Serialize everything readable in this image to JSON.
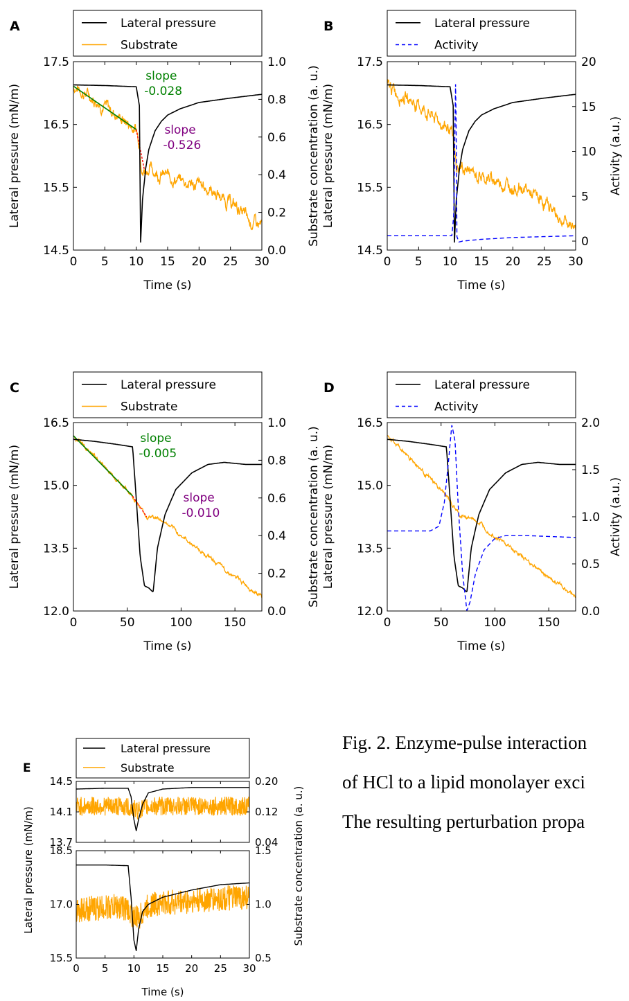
{
  "caption_lines": [
    "Fig. 2. Enzyme-pulse interaction",
    "of HCl to a lipid monolayer exci",
    "The resulting perturbation propa"
  ],
  "colors": {
    "pressure": "#000000",
    "substrate": "#ffa500",
    "activity": "#0000ff",
    "slope_fit": "#008000",
    "slope_label_1": "#008000",
    "slope_label_2": "#800080",
    "slope_fit_2": "#ff0000"
  },
  "chart_data": [
    {
      "panel": "A",
      "type": "line",
      "legend": [
        "Lateral pressure",
        "Substrate"
      ],
      "xlabel": "Time (s)",
      "ylabel_left": "Lateral pressure (mN/m)",
      "ylabel_right": "Substrate concentration (a. u.)",
      "xlim": [
        0,
        30
      ],
      "ylim_left": [
        14.5,
        17.5
      ],
      "ylim_right": [
        0.0,
        1.0
      ],
      "xticks": [
        "0",
        "5",
        "10",
        "15",
        "20",
        "25",
        "30"
      ],
      "yticks_left": [
        "14.5",
        "15.5",
        "16.5",
        "17.5"
      ],
      "yticks_right": [
        "0.0",
        "0.2",
        "0.4",
        "0.6",
        "0.8",
        "1.0"
      ],
      "series": [
        {
          "name": "Lateral pressure",
          "axis": "left",
          "x": [
            0,
            5,
            10,
            10.5,
            10.7,
            11,
            11.5,
            12,
            13,
            14,
            15,
            17,
            20,
            25,
            30
          ],
          "y": [
            17.13,
            17.12,
            17.1,
            16.8,
            14.62,
            15.3,
            15.8,
            16.1,
            16.4,
            16.55,
            16.65,
            16.75,
            16.85,
            16.92,
            16.98
          ]
        },
        {
          "name": "Substrate",
          "axis": "right",
          "x": [
            0,
            2,
            4,
            6,
            8,
            10,
            10.6,
            11,
            12,
            14,
            16,
            18,
            20,
            22,
            24,
            26,
            28,
            30
          ],
          "y": [
            0.87,
            0.83,
            0.79,
            0.74,
            0.69,
            0.64,
            0.56,
            0.42,
            0.44,
            0.4,
            0.38,
            0.36,
            0.34,
            0.32,
            0.27,
            0.23,
            0.15,
            0.13
          ]
        }
      ],
      "annotations": [
        {
          "text": "slope",
          "text2": "-0.028"
        },
        {
          "text": "slope",
          "text2": "-0.526"
        }
      ]
    },
    {
      "panel": "B",
      "type": "line",
      "legend": [
        "Lateral pressure",
        "Activity"
      ],
      "xlabel": "Time (s)",
      "ylabel_left": "Lateral pressure (mN/m)",
      "ylabel_right": "Activity (a.u.)",
      "xlim": [
        0,
        30
      ],
      "ylim_left": [
        14.5,
        17.5
      ],
      "ylim_right": [
        -1,
        20
      ],
      "xticks": [
        "0",
        "5",
        "10",
        "15",
        "20",
        "25",
        "30"
      ],
      "yticks_left": [
        "14.5",
        "15.5",
        "16.5",
        "17.5"
      ],
      "yticks_right": [
        "0",
        "5",
        "10",
        "15",
        "20"
      ],
      "series": [
        {
          "name": "Lateral pressure",
          "axis": "left",
          "x": [
            0,
            5,
            10,
            10.5,
            10.7,
            11,
            11.5,
            12,
            13,
            14,
            15,
            17,
            20,
            25,
            30
          ],
          "y": [
            17.13,
            17.12,
            17.1,
            16.8,
            14.62,
            15.3,
            15.8,
            16.1,
            16.4,
            16.55,
            16.65,
            16.75,
            16.85,
            16.92,
            16.98
          ]
        },
        {
          "name": "Activity",
          "axis": "right",
          "x": [
            0,
            10.3,
            10.6,
            10.9,
            11.1,
            11.4,
            12,
            15,
            20,
            25,
            30
          ],
          "y": [
            0.6,
            0.6,
            3,
            18.8,
            0.5,
            -0.1,
            0.0,
            0.2,
            0.4,
            0.5,
            0.6
          ]
        }
      ],
      "substrate_overlay": {
        "x": [
          0,
          2,
          4,
          6,
          8,
          10,
          10.6,
          11,
          12,
          14,
          16,
          18,
          20,
          22,
          24,
          26,
          28,
          30
        ],
        "y": [
          0.87,
          0.83,
          0.79,
          0.74,
          0.69,
          0.64,
          0.56,
          0.42,
          0.44,
          0.4,
          0.38,
          0.36,
          0.34,
          0.32,
          0.27,
          0.23,
          0.15,
          0.13
        ]
      }
    },
    {
      "panel": "C",
      "type": "line",
      "legend": [
        "Lateral pressure",
        "Substrate"
      ],
      "xlabel": "Time (s)",
      "ylabel_left": "Lateral pressure (mN/m)",
      "ylabel_right": "Substrate concentration (a. u.)",
      "xlim": [
        0,
        175
      ],
      "ylim_left": [
        12.0,
        16.5
      ],
      "ylim_right": [
        0.0,
        1.0
      ],
      "xticks": [
        "0",
        "50",
        "100",
        "150"
      ],
      "yticks_left": [
        "12.0",
        "13.5",
        "15.0",
        "16.5"
      ],
      "yticks_right": [
        "0.0",
        "0.2",
        "0.4",
        "0.6",
        "0.8",
        "1.0"
      ],
      "series": [
        {
          "name": "Lateral pressure",
          "axis": "left",
          "x": [
            0,
            20,
            40,
            55,
            58,
            62,
            66,
            70,
            74,
            78,
            85,
            95,
            110,
            125,
            140,
            160,
            175
          ],
          "y": [
            16.1,
            16.05,
            15.98,
            15.92,
            14.8,
            13.3,
            12.6,
            12.55,
            12.45,
            13.5,
            14.3,
            14.9,
            15.3,
            15.5,
            15.55,
            15.5,
            15.5
          ]
        },
        {
          "name": "Substrate",
          "axis": "right",
          "x": [
            0,
            20,
            40,
            55,
            62,
            68,
            75,
            85,
            100,
            125,
            150,
            175
          ],
          "y": [
            0.93,
            0.82,
            0.7,
            0.61,
            0.55,
            0.5,
            0.5,
            0.47,
            0.4,
            0.29,
            0.18,
            0.08
          ]
        }
      ],
      "annotations": [
        {
          "text": "slope",
          "text2": "-0.005"
        },
        {
          "text": "slope",
          "text2": "-0.010"
        }
      ]
    },
    {
      "panel": "D",
      "type": "line",
      "legend": [
        "Lateral pressure",
        "Activity"
      ],
      "xlabel": "Time (s)",
      "ylabel_left": "Lateral pressure (mN/m)",
      "ylabel_right": "Activity (a.u.)",
      "xlim": [
        0,
        175
      ],
      "ylim_left": [
        12.0,
        16.5
      ],
      "ylim_right": [
        0.0,
        2.0
      ],
      "xticks": [
        "0",
        "50",
        "100",
        "150"
      ],
      "yticks_left": [
        "12.0",
        "13.5",
        "15.0",
        "16.5"
      ],
      "yticks_right": [
        "0.0",
        "0.5",
        "1.0",
        "1.5",
        "2.0"
      ],
      "series": [
        {
          "name": "Lateral pressure",
          "axis": "left",
          "x": [
            0,
            20,
            40,
            55,
            58,
            62,
            66,
            70,
            74,
            78,
            85,
            95,
            110,
            125,
            140,
            160,
            175
          ],
          "y": [
            16.1,
            16.05,
            15.98,
            15.92,
            14.8,
            13.3,
            12.6,
            12.55,
            12.45,
            13.5,
            14.3,
            14.9,
            15.3,
            15.5,
            15.55,
            15.5,
            15.5
          ]
        },
        {
          "name": "Activity",
          "axis": "right",
          "x": [
            0,
            40,
            48,
            53,
            57,
            60,
            63,
            66,
            70,
            74,
            77,
            82,
            90,
            100,
            110,
            130,
            175
          ],
          "y": [
            0.85,
            0.85,
            0.9,
            1.15,
            1.6,
            1.98,
            1.8,
            1.1,
            0.4,
            0.0,
            0.1,
            0.4,
            0.65,
            0.77,
            0.8,
            0.8,
            0.78
          ]
        }
      ],
      "substrate_overlay": {
        "x": [
          0,
          20,
          40,
          55,
          62,
          68,
          75,
          85,
          100,
          125,
          150,
          175
        ],
        "y": [
          0.93,
          0.82,
          0.7,
          0.61,
          0.55,
          0.5,
          0.5,
          0.47,
          0.4,
          0.29,
          0.18,
          0.08
        ]
      }
    },
    {
      "panel": "E",
      "type": "line",
      "legend": [
        "Lateral pressure",
        "Substrate"
      ],
      "xlabel": "Time (s)",
      "ylabel_left": "Lateral pressure (mN/m)",
      "ylabel_right": "Substrate concentration (a. u.)",
      "xlim": [
        0,
        30
      ],
      "xticks": [
        "0",
        "5",
        "10",
        "15",
        "20",
        "25",
        "30"
      ],
      "subplots": [
        {
          "ylim_left": [
            13.7,
            14.5
          ],
          "ylim_right": [
            0.04,
            0.2
          ],
          "yticks_left": [
            "13.7",
            "14.1",
            "14.5"
          ],
          "yticks_right": [
            "0.04",
            "0.12",
            "0.20"
          ],
          "pressure": {
            "x": [
              0,
              5,
              9,
              9.5,
              10,
              10.4,
              10.8,
              11.5,
              12.5,
              15,
              20,
              25,
              30
            ],
            "y": [
              14.4,
              14.41,
              14.41,
              14.3,
              14.0,
              13.85,
              14.0,
              14.2,
              14.35,
              14.4,
              14.42,
              14.42,
              14.42
            ]
          },
          "substrate_mean": 0.135,
          "substrate_noise": 0.025
        },
        {
          "ylim_left": [
            15.5,
            18.5
          ],
          "ylim_right": [
            0.5,
            1.5
          ],
          "yticks_left": [
            "15.5",
            "17.0",
            "18.5"
          ],
          "yticks_right": [
            "0.5",
            "1.0",
            "1.5"
          ],
          "pressure": {
            "x": [
              0,
              5,
              9,
              9.5,
              10,
              10.4,
              10.8,
              11.5,
              12.5,
              15,
              20,
              25,
              30
            ],
            "y": [
              18.1,
              18.1,
              18.08,
              17.2,
              16.0,
              15.7,
              16.3,
              16.8,
              17.0,
              17.2,
              17.4,
              17.55,
              17.6
            ]
          },
          "substrate_mean": 0.95,
          "substrate_noise": 0.12
        }
      ]
    }
  ]
}
